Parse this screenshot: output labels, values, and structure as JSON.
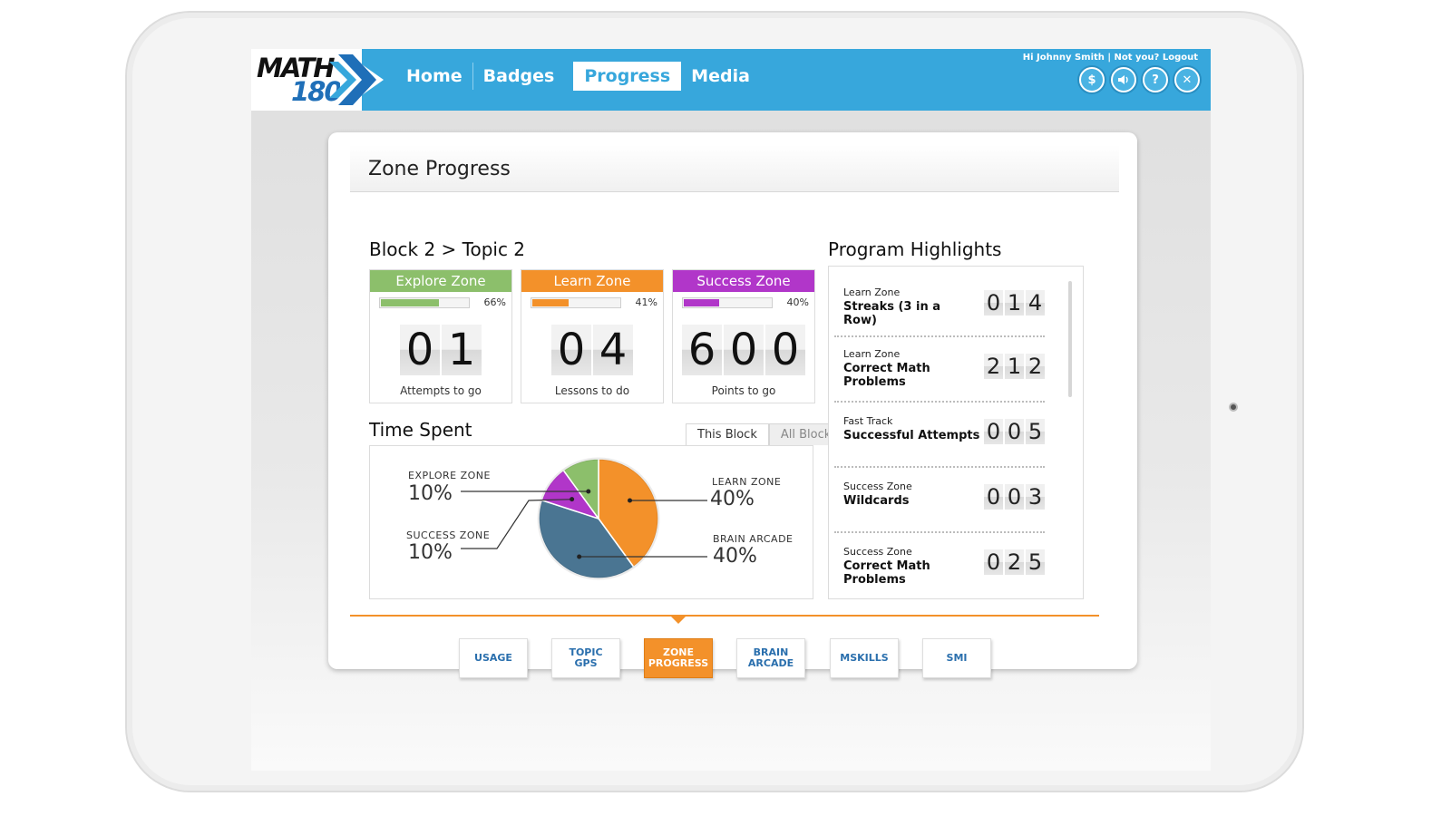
{
  "brand": {
    "line1": "MATH",
    "line2": "180"
  },
  "nav": {
    "items": [
      "Home",
      "Badges",
      "Progress",
      "Media"
    ],
    "active": "Progress"
  },
  "user": {
    "greeting": "Hi Johnny Smith",
    "not_you": "Not you?",
    "logout": "Logout"
  },
  "top_icons": [
    "coin-icon",
    "speaker-icon",
    "help-icon",
    "close-icon"
  ],
  "panel": {
    "title": "Zone Progress"
  },
  "block": {
    "title": "Block 2 > Topic 2",
    "zones": [
      {
        "name": "Explore Zone",
        "color": "#8cbf6b",
        "percent": "66%",
        "progress": 0.66,
        "digits": [
          "0",
          "1"
        ],
        "label": "Attempts to go"
      },
      {
        "name": "Learn Zone",
        "color": "#f3912a",
        "percent": "41%",
        "progress": 0.41,
        "digits": [
          "0",
          "4"
        ],
        "label": "Lessons to do"
      },
      {
        "name": "Success Zone",
        "color": "#b136c9",
        "percent": "40%",
        "progress": 0.4,
        "digits": [
          "6",
          "0",
          "0"
        ],
        "label": "Points to go"
      }
    ]
  },
  "time_spent": {
    "title": "Time Spent",
    "tabs": [
      "This Block",
      "All Blocks"
    ],
    "active_tab": "This Block",
    "slices": [
      {
        "name": "EXPLORE ZONE",
        "value": "10%",
        "color": "#8cbf6b"
      },
      {
        "name": "SUCCESS ZONE",
        "value": "10%",
        "color": "#b136c9"
      },
      {
        "name": "LEARN ZONE",
        "value": "40%",
        "color": "#f3912a"
      },
      {
        "name": "BRAIN ARCADE",
        "value": "40%",
        "color": "#4a7592"
      }
    ]
  },
  "chart_data": {
    "type": "pie",
    "title": "Time Spent",
    "categories": [
      "Learn Zone",
      "Brain Arcade",
      "Success Zone",
      "Explore Zone"
    ],
    "values": [
      40,
      40,
      10,
      10
    ]
  },
  "highlights": {
    "title": "Program Highlights",
    "items": [
      {
        "sub": "Learn Zone",
        "main": "Streaks (3 in a Row)",
        "digits": [
          "0",
          "1",
          "4"
        ]
      },
      {
        "sub": "Learn Zone",
        "main": "Correct Math Problems",
        "digits": [
          "2",
          "1",
          "2"
        ]
      },
      {
        "sub": "Fast Track",
        "main": "Successful Attempts",
        "digits": [
          "0",
          "0",
          "5"
        ]
      },
      {
        "sub": "Success Zone",
        "main": "Wildcards",
        "digits": [
          "0",
          "0",
          "3"
        ]
      },
      {
        "sub": "Success Zone",
        "main": "Correct Math Problems",
        "digits": [
          "0",
          "2",
          "5"
        ]
      }
    ]
  },
  "bottom_tabs": {
    "items": [
      "USAGE",
      "TOPIC GPS",
      "ZONE PROGRESS",
      "BRAIN ARCADE",
      "MSKILLS",
      "SMI"
    ],
    "active": "ZONE PROGRESS"
  }
}
